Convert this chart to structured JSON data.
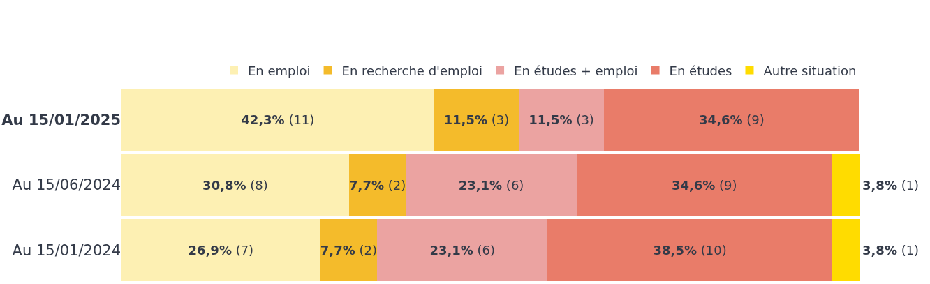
{
  "chart_data": {
    "type": "bar",
    "orientation": "horizontal",
    "stacked": true,
    "legend": "top",
    "tick_labels": "y",
    "xlim": [
      0,
      100
    ],
    "categories": [
      "Au 15/01/2025",
      "Au 15/06/2024",
      "Au 15/01/2024"
    ],
    "series": [
      {
        "name": "En emploi",
        "color": "#fdf0b3",
        "values": [
          42.3,
          30.8,
          26.9
        ],
        "value_labels": [
          "42,3% (11)",
          "30,8% (8)",
          "26,9% (7)"
        ]
      },
      {
        "name": "En recherche d'emploi",
        "color": "#f4bb2b",
        "values": [
          11.5,
          7.7,
          7.7
        ],
        "value_labels": [
          "11,5% (3)",
          "7,7% (2)",
          "7,7% (2)"
        ]
      },
      {
        "name": "En études + emploi",
        "color": "#eba3a1",
        "values": [
          11.5,
          23.1,
          23.1
        ],
        "value_labels": [
          "11,5% (3)",
          "23,1% (6)",
          "23,1% (6)"
        ]
      },
      {
        "name": "En études",
        "color": "#e97c69",
        "values": [
          34.6,
          34.6,
          38.5
        ],
        "value_labels": [
          "34,6% (9)",
          "34,6% (9)",
          "38,5% (10)"
        ]
      },
      {
        "name": "Autre situation",
        "color": "#ffdc00",
        "values": [
          null,
          3.8,
          3.8
        ],
        "value_labels": [
          null,
          "3,8% (1)",
          "3,8% (1)"
        ]
      }
    ]
  }
}
